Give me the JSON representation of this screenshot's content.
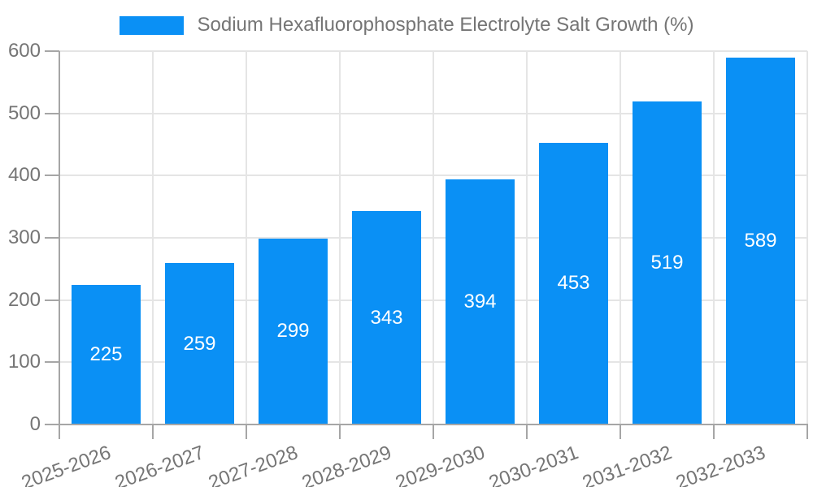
{
  "legend": {
    "label": "Sodium Hexafluorophosphate Electrolyte Salt Growth (%)"
  },
  "colors": {
    "bar": "#0a90f5",
    "grid": "#e5e5e5",
    "axis": "#a6a6a6",
    "tick_text": "#757575",
    "value_text": "#ffffff"
  },
  "chart_data": {
    "type": "bar",
    "title": "Sodium Hexafluorophosphate Electrolyte Salt Growth (%)",
    "categories": [
      "2025-2026",
      "2026-2027",
      "2027-2028",
      "2028-2029",
      "2029-2030",
      "2030-2031",
      "2031-2032",
      "2032-2033"
    ],
    "values": [
      225,
      259,
      299,
      343,
      394,
      453,
      519,
      589
    ],
    "xlabel": "",
    "ylabel": "",
    "ylim": [
      0,
      600
    ],
    "yticks": [
      0,
      100,
      200,
      300,
      400,
      500,
      600
    ],
    "grid": true,
    "legend_position": "top",
    "bar_labels_inside": true,
    "x_label_rotation_deg": -20
  }
}
